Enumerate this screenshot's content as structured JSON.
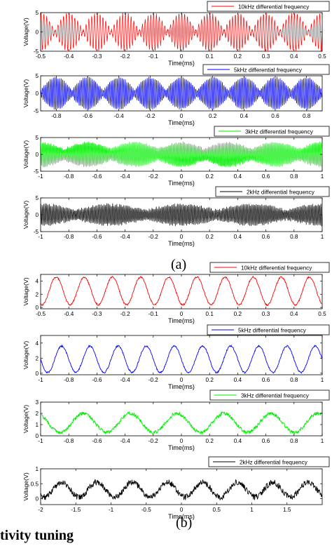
{
  "figure": {
    "panel_a_label": "(a)",
    "panel_b_label": "(b)",
    "bottom_text": "tivity tuning"
  },
  "chart_data": [
    {
      "type": "line",
      "panel": "a",
      "title": "",
      "xlabel": "Time(ms)",
      "ylabel": "Voltage(V)",
      "xlim": [
        -0.5,
        0.5
      ],
      "ylim": [
        -5,
        5
      ],
      "xticks": [
        -0.5,
        -0.4,
        -0.3,
        -0.2,
        -0.1,
        0,
        0.1,
        0.2,
        0.3,
        0.4,
        0.5
      ],
      "xtick_labels": [
        "-0.5",
        "-0.4",
        "-0.3",
        "-0.2",
        "-0.1",
        "0",
        "0.1",
        "0.2",
        "0.3",
        "0.4",
        "0.5"
      ],
      "yticks": [
        -5,
        0,
        5
      ],
      "ytick_labels": [
        "-5",
        "0",
        "5"
      ],
      "grid": false,
      "legend_position": "top-right",
      "series": [
        {
          "name": "10kHz differential frequency",
          "color": "#ff0000",
          "signal": {
            "kind": "beat",
            "carrier_cycles_per_ms": 100,
            "envelope_cycles_per_ms": 10,
            "envelope_min": 0.3,
            "envelope_max": 4.8,
            "noise": 0.3
          }
        }
      ]
    },
    {
      "type": "line",
      "panel": "a",
      "title": "",
      "xlabel": "Time(ms)",
      "ylabel": "Voltage(V)",
      "xlim": [
        -0.9,
        0.9
      ],
      "ylim": [
        -5,
        5
      ],
      "xticks": [
        -0.8,
        -0.6,
        -0.4,
        -0.2,
        0,
        0.2,
        0.4,
        0.6,
        0.8
      ],
      "xtick_labels": [
        "-0.8",
        "-0.6",
        "-0.4",
        "-0.2",
        "0",
        "0.2",
        "0.4",
        "0.6",
        "0.8"
      ],
      "yticks": [
        -5,
        0,
        5
      ],
      "ytick_labels": [
        "-5",
        "0",
        "5"
      ],
      "grid": false,
      "legend_position": "top-right",
      "series": [
        {
          "name": "5kHz differential frequency",
          "color": "#0000ff",
          "signal": {
            "kind": "beat",
            "carrier_cycles_per_ms": 100,
            "envelope_cycles_per_ms": 5,
            "envelope_min": 0.8,
            "envelope_max": 4.5,
            "noise": 0.3
          }
        }
      ]
    },
    {
      "type": "line",
      "panel": "a",
      "title": "",
      "xlabel": "Time(ms)",
      "ylabel": "Voltage(V)",
      "xlim": [
        -1,
        1
      ],
      "ylim": [
        -5,
        5
      ],
      "xticks": [
        -1,
        -0.8,
        -0.6,
        -0.4,
        -0.2,
        0,
        0.2,
        0.4,
        0.6,
        0.8,
        1
      ],
      "xtick_labels": [
        "-1",
        "-0.8",
        "-0.6",
        "-0.4",
        "-0.2",
        "0",
        "0.2",
        "0.4",
        "0.6",
        "0.8",
        "1"
      ],
      "yticks": [
        -5,
        0,
        5
      ],
      "ytick_labels": [
        "-5",
        "0",
        "5"
      ],
      "grid": false,
      "legend_position": "top-right",
      "series": [
        {
          "name": "3kHz differential frequency",
          "color": "#00ee00",
          "signal": {
            "kind": "beat",
            "carrier_cycles_per_ms": 100,
            "envelope_cycles_per_ms": 3,
            "envelope_min": 1.5,
            "envelope_max": 3.5,
            "noise": 0.4
          }
        }
      ]
    },
    {
      "type": "line",
      "panel": "a",
      "title": "",
      "xlabel": "Time(ms)",
      "ylabel": "Voltage(V)",
      "xlim": [
        -1,
        1
      ],
      "ylim": [
        -5,
        5
      ],
      "xticks": [
        -1,
        -0.8,
        -0.6,
        -0.4,
        -0.2,
        0,
        0.2,
        0.4,
        0.6,
        0.8,
        1
      ],
      "xtick_labels": [
        "-1",
        "-0.8",
        "-0.6",
        "-0.4",
        "-0.2",
        "0",
        "0.2",
        "0.4",
        "0.6",
        "0.8",
        "1"
      ],
      "yticks": [
        -5,
        0,
        5
      ],
      "ytick_labels": [
        "-5",
        "0",
        "5"
      ],
      "grid": false,
      "legend_position": "top-right",
      "series": [
        {
          "name": "2kHz differential frequency",
          "color": "#000000",
          "signal": {
            "kind": "beat",
            "carrier_cycles_per_ms": 100,
            "envelope_cycles_per_ms": 2,
            "envelope_min": 1.2,
            "envelope_max": 3.0,
            "noise": 0.5
          }
        }
      ]
    },
    {
      "type": "line",
      "panel": "b",
      "title": "",
      "xlabel": "Time(ms)",
      "ylabel": "Voltage(V)",
      "xlim": [
        -0.5,
        0.5
      ],
      "ylim": [
        -0.2,
        5
      ],
      "xticks": [
        -0.5,
        -0.4,
        -0.3,
        -0.2,
        -0.1,
        0,
        0.1,
        0.2,
        0.3,
        0.4,
        0.5
      ],
      "xtick_labels": [
        "-0.5",
        "-0.4",
        "-0.3",
        "-0.2",
        "-0.1",
        "0",
        "0.1",
        "0.2",
        "0.3",
        "0.4",
        "0.5"
      ],
      "yticks": [
        0,
        2,
        4
      ],
      "ytick_labels": [
        "0",
        "2",
        "4"
      ],
      "grid": false,
      "legend_position": "top-right",
      "series": [
        {
          "name": "10kHz differential frequency",
          "color": "#ff0000",
          "signal": {
            "kind": "envelope",
            "cycles_per_ms": 10,
            "min": 0.4,
            "max": 4.6,
            "noise": 0.12,
            "peak_at": -0.045
          }
        }
      ]
    },
    {
      "type": "line",
      "panel": "b",
      "title": "",
      "xlabel": "Time(ms)",
      "ylabel": "Voltage(V)",
      "xlim": [
        -1,
        1
      ],
      "ylim": [
        -0.2,
        5
      ],
      "xticks": [
        -1,
        -0.8,
        -0.6,
        -0.4,
        -0.2,
        0,
        0.2,
        0.4,
        0.6,
        0.8,
        1
      ],
      "xtick_labels": [
        "-1",
        "-0.8",
        "-0.6",
        "-0.4",
        "-0.2",
        "0",
        "0.2",
        "0.4",
        "0.6",
        "0.8",
        "1"
      ],
      "yticks": [
        0,
        2,
        4
      ],
      "ytick_labels": [
        "0",
        "2",
        "4"
      ],
      "grid": false,
      "legend_position": "top-right",
      "series": [
        {
          "name": "5kHz differential frequency",
          "color": "#0000ff",
          "signal": {
            "kind": "envelope",
            "cycles_per_ms": 5,
            "min": 0.1,
            "max": 3.6,
            "noise": 0.1,
            "peak_at": -0.05
          }
        }
      ]
    },
    {
      "type": "line",
      "panel": "b",
      "title": "",
      "xlabel": "Time(ms)",
      "ylabel": "Voltage(V)",
      "xlim": [
        -1,
        1
      ],
      "ylim": [
        0,
        3
      ],
      "xticks": [
        -1,
        -0.8,
        -0.6,
        -0.4,
        -0.2,
        0,
        0.2,
        0.4,
        0.6,
        0.8,
        1
      ],
      "xtick_labels": [
        "-1",
        "-0.8",
        "-0.6",
        "-0.4",
        "-0.2",
        "0",
        "0.2",
        "0.4",
        "0.6",
        "0.8",
        "1"
      ],
      "yticks": [
        0,
        1,
        2,
        3
      ],
      "ytick_labels": [
        "0",
        "1",
        "2",
        "3"
      ],
      "grid": false,
      "legend_position": "top-right",
      "series": [
        {
          "name": "3kHz differential frequency",
          "color": "#00ee00",
          "signal": {
            "kind": "envelope",
            "cycles_per_ms": 3,
            "min": 0.3,
            "max": 2.0,
            "noise": 0.15,
            "peak_at": -0.03
          }
        }
      ]
    },
    {
      "type": "line",
      "panel": "b",
      "title": "",
      "xlabel": "Time(ms)",
      "ylabel": "Voltage(V)",
      "xlim": [
        -2,
        2
      ],
      "ylim": [
        -0.2,
        1
      ],
      "xticks": [
        -2,
        -1.5,
        -1,
        -0.5,
        0,
        0.5,
        1,
        1.5
      ],
      "xtick_labels": [
        "-2",
        "-1.5",
        "-1",
        "-0.5",
        "0",
        "0.5",
        "1",
        "1.5"
      ],
      "yticks": [
        0,
        0.5,
        1
      ],
      "ytick_labels": [
        "0",
        "0.5",
        "1"
      ],
      "grid": false,
      "legend_position": "top-right",
      "series": [
        {
          "name": "2kHz differential frequency",
          "color": "#000000",
          "signal": {
            "kind": "envelope",
            "cycles_per_ms": 2,
            "min": 0.05,
            "max": 0.55,
            "noise": 0.1,
            "peak_at": -0.2
          }
        }
      ]
    }
  ]
}
